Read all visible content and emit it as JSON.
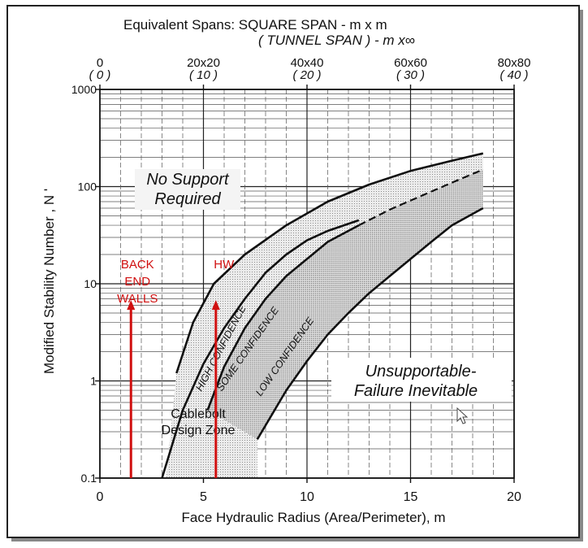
{
  "top_axis": {
    "title_line1": "Equivalent Spans:  SQUARE SPAN   -   m x m",
    "title_line2": "( TUNNEL  SPAN )  -   m x∞",
    "square_ticks": [
      "0",
      "20x20",
      "40x40",
      "60x60",
      "80x80"
    ],
    "tunnel_ticks": [
      "( 0 )",
      "( 10 )",
      "( 20 )",
      "( 30 )",
      "( 40 )"
    ]
  },
  "chart_data": {
    "type": "line",
    "xlabel": "Face Hydraulic Radius (Area/Perimeter), m",
    "ylabel": "Modified Stability Number , N '",
    "x_ticks": [
      "0",
      "5",
      "10",
      "15",
      "20"
    ],
    "y_ticks": [
      "0.1",
      "1",
      "10",
      "100",
      "1000"
    ],
    "xlim": [
      0,
      20
    ],
    "ylim": [
      0.1,
      1000
    ],
    "y_scale": "log",
    "grid": true,
    "series": [
      {
        "key": "no_support",
        "x": [
          3.7,
          4.5,
          5.5,
          7,
          9,
          11,
          13,
          15,
          17,
          18.5
        ],
        "y": [
          1.2,
          4,
          10,
          20,
          40,
          70,
          105,
          145,
          185,
          220
        ]
      },
      {
        "key": "upper_zone",
        "x": [
          3.0,
          4.0,
          5,
          6,
          7,
          8,
          9,
          10,
          11,
          12.5
        ],
        "y": [
          0.1,
          0.5,
          1.5,
          3.5,
          7,
          13,
          20,
          28,
          35,
          45
        ]
      },
      {
        "key": "some_conf_upper",
        "x": [
          5.2,
          6,
          7,
          8,
          9,
          10,
          11,
          12.5
        ],
        "y": [
          0.5,
          1.4,
          3.5,
          7,
          12,
          18,
          27,
          40
        ]
      },
      {
        "key": "dashed",
        "x": [
          12.5,
          14,
          15.5,
          17,
          18.5
        ],
        "y": [
          40,
          58,
          80,
          110,
          150
        ]
      },
      {
        "key": "low_conf_lower",
        "x": [
          7.6,
          9,
          10,
          11,
          12,
          13,
          14,
          15,
          16,
          17,
          18.5
        ],
        "y": [
          0.25,
          0.8,
          1.6,
          3,
          5,
          8,
          12,
          18,
          27,
          40,
          60
        ]
      }
    ],
    "zones": {
      "no_support": [
        "No Support",
        "Required"
      ],
      "unsupportable": [
        "Unsupportable-",
        "Failure Inevitable"
      ],
      "cablebolt": [
        "Cablebolt",
        "Design Zone"
      ],
      "high_confidence": "HIGH CONFIDENCE",
      "some_confidence": "SOME CONFIDENCE",
      "low_confidence": "LOW CONFIDENCE"
    },
    "annotations": [
      {
        "x": 1.5,
        "y_top": 6.8,
        "lines": [
          "BACK",
          "END",
          "WALLS"
        ]
      },
      {
        "x": 5.6,
        "y_top": 6.8,
        "lines": [
          "HW"
        ]
      }
    ],
    "annotation_color": "#d01010"
  }
}
